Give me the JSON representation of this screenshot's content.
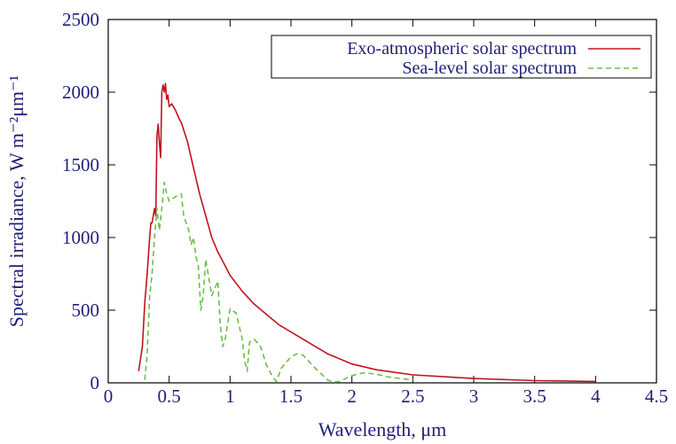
{
  "chart_data": {
    "type": "line",
    "xlabel": "Wavelength, μm",
    "ylabel": "Spectral irradiance, W m⁻²μm⁻¹",
    "xlim": [
      0,
      4.5
    ],
    "ylim": [
      0,
      2500
    ],
    "xticks": [
      "0",
      "0.5",
      "1",
      "1.5",
      "2",
      "2.5",
      "3",
      "3.5",
      "4",
      "4.5"
    ],
    "yticks": [
      "0",
      "500",
      "1000",
      "1500",
      "2000",
      "2500"
    ],
    "grid": false,
    "legend_position": "top-right",
    "colors": {
      "exo": "#c0141e",
      "sea": "#6abf4b",
      "axis": "#000000",
      "text": "#1f1f7a"
    },
    "series": [
      {
        "name": "Exo-atmospheric solar spectrum",
        "style": "solid",
        "x": [
          0.25,
          0.28,
          0.3,
          0.32,
          0.34,
          0.35,
          0.36,
          0.37,
          0.38,
          0.39,
          0.4,
          0.41,
          0.42,
          0.43,
          0.44,
          0.45,
          0.46,
          0.47,
          0.48,
          0.49,
          0.5,
          0.52,
          0.55,
          0.58,
          0.6,
          0.65,
          0.7,
          0.75,
          0.8,
          0.85,
          0.9,
          0.95,
          1.0,
          1.1,
          1.2,
          1.3,
          1.4,
          1.5,
          1.6,
          1.8,
          2.0,
          2.2,
          2.5,
          3.0,
          3.5,
          4.0
        ],
        "y": [
          80,
          250,
          550,
          750,
          1000,
          1100,
          1100,
          1150,
          1200,
          1150,
          1700,
          1780,
          1650,
          1550,
          2000,
          2050,
          2000,
          2060,
          1950,
          1980,
          1900,
          1920,
          1880,
          1820,
          1790,
          1660,
          1480,
          1300,
          1150,
          1000,
          900,
          820,
          740,
          630,
          540,
          470,
          400,
          350,
          300,
          200,
          130,
          90,
          55,
          30,
          15,
          10
        ]
      },
      {
        "name": "Sea-level solar spectrum",
        "style": "dashed",
        "x": [
          0.3,
          0.32,
          0.34,
          0.36,
          0.38,
          0.4,
          0.42,
          0.44,
          0.46,
          0.48,
          0.5,
          0.55,
          0.6,
          0.62,
          0.66,
          0.68,
          0.7,
          0.72,
          0.74,
          0.76,
          0.78,
          0.8,
          0.85,
          0.9,
          0.92,
          0.94,
          0.96,
          1.0,
          1.05,
          1.1,
          1.12,
          1.14,
          1.16,
          1.2,
          1.25,
          1.3,
          1.35,
          1.38,
          1.42,
          1.5,
          1.55,
          1.6,
          1.7,
          1.8,
          1.85,
          1.9,
          2.0,
          2.1,
          2.2,
          2.3,
          2.4,
          2.5
        ],
        "y": [
          20,
          200,
          600,
          750,
          1000,
          1200,
          1050,
          1200,
          1380,
          1300,
          1250,
          1280,
          1300,
          1150,
          1050,
          950,
          1000,
          870,
          800,
          500,
          600,
          850,
          600,
          700,
          400,
          250,
          300,
          510,
          480,
          300,
          150,
          80,
          280,
          300,
          250,
          120,
          40,
          10,
          100,
          180,
          200,
          190,
          100,
          20,
          5,
          10,
          50,
          70,
          60,
          40,
          30,
          20
        ]
      }
    ]
  }
}
